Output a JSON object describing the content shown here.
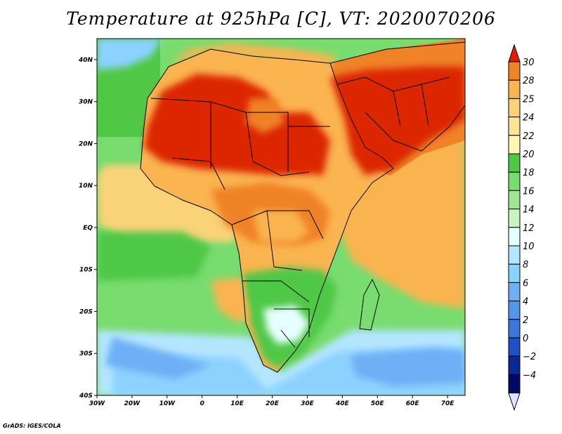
{
  "title": "Temperature at 925hPa [C], VT: 2020070206",
  "credit": "GrADS: IGES/COLA",
  "map": {
    "lon_range": [
      -30,
      75
    ],
    "lat_range": [
      -40,
      45
    ],
    "lat_ticks": [
      {
        "lat": 40,
        "label": "40N"
      },
      {
        "lat": 30,
        "label": "30N"
      },
      {
        "lat": 20,
        "label": "20N"
      },
      {
        "lat": 10,
        "label": "10N"
      },
      {
        "lat": 0,
        "label": "EQ"
      },
      {
        "lat": -10,
        "label": "10S"
      },
      {
        "lat": -20,
        "label": "20S"
      },
      {
        "lat": -30,
        "label": "30S"
      },
      {
        "lat": -40,
        "label": "40S"
      }
    ],
    "lon_ticks": [
      {
        "lon": -30,
        "label": "30W"
      },
      {
        "lon": -20,
        "label": "20W"
      },
      {
        "lon": -10,
        "label": "10W"
      },
      {
        "lon": 0,
        "label": "0"
      },
      {
        "lon": 10,
        "label": "10E"
      },
      {
        "lon": 20,
        "label": "20E"
      },
      {
        "lon": 30,
        "label": "30E"
      },
      {
        "lon": 40,
        "label": "40E"
      },
      {
        "lon": 50,
        "label": "50E"
      },
      {
        "lon": 60,
        "label": "60E"
      },
      {
        "lon": 70,
        "label": "70E"
      }
    ]
  },
  "colorbar": {
    "levels": [
      "30",
      "28",
      "25",
      "24",
      "22",
      "20",
      "18",
      "16",
      "14",
      "12",
      "10",
      "8",
      "6",
      "4",
      "2",
      "0",
      "-2",
      "-4"
    ],
    "colors": [
      "#f08228",
      "#fab450",
      "#fad278",
      "#fae696",
      "#fff5b4",
      "#50c846",
      "#78dc6e",
      "#a0e696",
      "#c8f5be",
      "#e6ffff",
      "#b4e6ff",
      "#8cd2ff",
      "#6eaff5",
      "#5596eb",
      "#3c78dc",
      "#1e50c8",
      "#0a2896",
      "#000a64"
    ],
    "top_color": "#e11e05",
    "bottom_color": "#dce6ff"
  },
  "regions": {
    "ocean_far_south": "#6eaff5",
    "ocean_south": "#8cd2ff",
    "ocean_mid_south": "#b4e6ff",
    "ocean_green": "#50c846",
    "ocean_light_green": "#78dc6e",
    "atlantic_tropics": "#fad278",
    "indian_ocean": "#fab450",
    "land_warm": "#fab450",
    "land_mid": "#f08228",
    "sahara_hot": "#dc2800",
    "arabia_hot": "#dc2800",
    "med": "#fab450",
    "southern_africa": "#50c846",
    "kalahari_cool": "#e6ffff",
    "namibia_coast": "#fab450",
    "north_atlantic_cool": "#8cd2ff"
  }
}
